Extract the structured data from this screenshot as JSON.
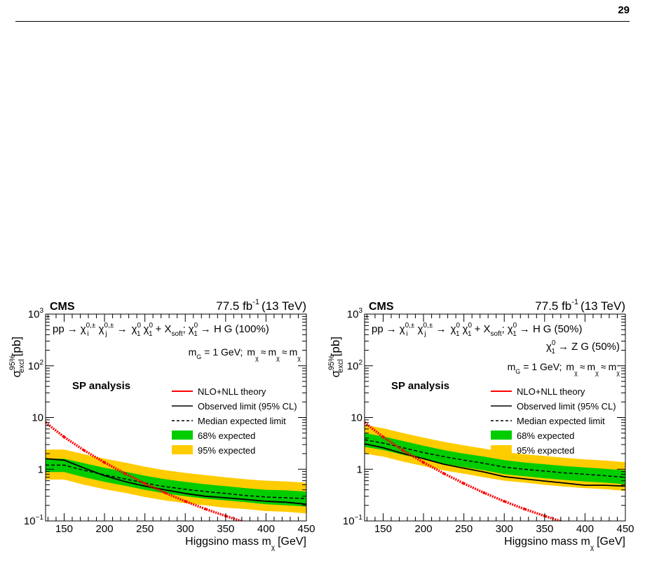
{
  "page": {
    "number": "29"
  },
  "chart_data": [
    {
      "type": "line",
      "experiment": "CMS",
      "luminosity": {
        "value": "77.5 fb",
        "exp": "-1",
        "energy": "(13 TeV)"
      },
      "process": {
        "pp": "pp",
        "arrow1": "→",
        "chi_pm_i": "χ",
        "sup_i": "0,±",
        "sub_i": "i",
        "chi_pm_j": "χ",
        "sup_j": "0,±",
        "sub_j": "j",
        "arrow2": "→",
        "chi1a": "χ",
        "chi1b": "χ",
        "plus_x": "+ X",
        "soft": "soft",
        "semicolon": ";",
        "chi1c": "χ",
        "decay": "→ H",
        "gravitino": "G",
        "br": "(100%)",
        "sup0": "0",
        "sub1": "1",
        "tilde": "~"
      },
      "second_decay": null,
      "mass_condition": {
        "mg": "m",
        "mg_sub": "G",
        "mg_val": "= 1 GeV;",
        "m": "m",
        "approx": "≈",
        "sub_chi20": "χ",
        "sub_chi1pm": "χ",
        "sub_chi10": "χ"
      },
      "analysis": "SP analysis",
      "xlabel": {
        "text": "Higgsino mass m",
        "sub": "χ",
        "unit": "[GeV]"
      },
      "ylabel": {
        "sigma": "σ",
        "sup": "95%",
        "sub": "excl",
        "unit": "[pb]"
      },
      "xlim": [
        127,
        450
      ],
      "ylim": [
        0.1,
        1000
      ],
      "yscale": "log",
      "x_ticks": [
        150,
        200,
        250,
        300,
        350,
        400,
        450
      ],
      "y_ticks": [
        {
          "v": 0.1,
          "b": "10",
          "e": "−1"
        },
        {
          "v": 1,
          "b": "1",
          "e": ""
        },
        {
          "v": 10,
          "b": "10",
          "e": ""
        },
        {
          "v": 100,
          "b": "10",
          "e": "2"
        },
        {
          "v": 1000,
          "b": "10",
          "e": "3"
        }
      ],
      "legend": {
        "placement": "middle-right",
        "theory": "NLO+NLL theory",
        "observed": "Observed limit (95% CL)",
        "expected": "Median expected limit",
        "band68": "68% expected",
        "band95": "95% expected"
      },
      "colors": {
        "theory": "#ff0000",
        "band68": "#00cc00",
        "band95": "#ffcc00",
        "line": "#000000"
      },
      "x": [
        127,
        150,
        175,
        200,
        225,
        250,
        275,
        300,
        325,
        350,
        375,
        400,
        425,
        450
      ],
      "theory": [
        8.0,
        4.2,
        2.3,
        1.35,
        0.83,
        0.53,
        0.35,
        0.24,
        0.17,
        0.125,
        0.093,
        0.07,
        0.054,
        0.042
      ],
      "observed": [
        1.6,
        1.5,
        1.05,
        0.75,
        0.58,
        0.47,
        0.4,
        0.34,
        0.3,
        0.28,
        0.26,
        0.24,
        0.23,
        0.21
      ],
      "expected": [
        1.2,
        1.2,
        0.95,
        0.78,
        0.65,
        0.54,
        0.46,
        0.41,
        0.37,
        0.34,
        0.31,
        0.29,
        0.28,
        0.27
      ],
      "band68_lo": [
        0.88,
        0.88,
        0.7,
        0.57,
        0.48,
        0.4,
        0.34,
        0.3,
        0.27,
        0.25,
        0.23,
        0.21,
        0.2,
        0.19
      ],
      "band68_hi": [
        1.6,
        1.6,
        1.3,
        1.07,
        0.9,
        0.75,
        0.64,
        0.57,
        0.51,
        0.47,
        0.43,
        0.4,
        0.39,
        0.37
      ],
      "band95_lo": [
        0.63,
        0.63,
        0.5,
        0.41,
        0.35,
        0.29,
        0.25,
        0.22,
        0.2,
        0.18,
        0.17,
        0.155,
        0.15,
        0.14
      ],
      "band95_hi": [
        2.4,
        2.4,
        1.95,
        1.6,
        1.35,
        1.12,
        0.96,
        0.85,
        0.77,
        0.7,
        0.64,
        0.6,
        0.58,
        0.55
      ]
    },
    {
      "type": "line",
      "experiment": "CMS",
      "luminosity": {
        "value": "77.5 fb",
        "exp": "-1",
        "energy": "(13 TeV)"
      },
      "process": {
        "pp": "pp",
        "arrow1": "→",
        "chi_pm_i": "χ",
        "sup_i": "0,±",
        "sub_i": "i",
        "chi_pm_j": "χ",
        "sup_j": "0,±",
        "sub_j": "j",
        "arrow2": "→",
        "chi1a": "χ",
        "chi1b": "χ",
        "plus_x": "+ X",
        "soft": "soft",
        "semicolon": ";",
        "chi1c": "χ",
        "decay": "→ H",
        "gravitino": "G",
        "br": "(50%)",
        "sup0": "0",
        "sub1": "1",
        "tilde": "~"
      },
      "second_decay": {
        "chi": "χ",
        "decay": "→ Z",
        "gravitino": "G",
        "br": "(50%)"
      },
      "mass_condition": {
        "mg": "m",
        "mg_sub": "G",
        "mg_val": "= 1 GeV;",
        "m": "m",
        "approx": "≈",
        "sub_chi20": "χ",
        "sub_chi1pm": "χ",
        "sub_chi10": "χ"
      },
      "analysis": "SP analysis",
      "xlabel": {
        "text": "Higgsino mass m",
        "sub": "χ",
        "unit": "[GeV]"
      },
      "ylabel": {
        "sigma": "σ",
        "sup": "95%",
        "sub": "excl",
        "unit": "[pb]"
      },
      "xlim": [
        127,
        450
      ],
      "ylim": [
        0.1,
        1000
      ],
      "yscale": "log",
      "x_ticks": [
        150,
        200,
        250,
        300,
        350,
        400,
        450
      ],
      "y_ticks": [
        {
          "v": 0.1,
          "b": "10",
          "e": "−1"
        },
        {
          "v": 1,
          "b": "1",
          "e": ""
        },
        {
          "v": 10,
          "b": "10",
          "e": ""
        },
        {
          "v": 100,
          "b": "10",
          "e": "2"
        },
        {
          "v": 1000,
          "b": "10",
          "e": "3"
        }
      ],
      "legend": {
        "placement": "middle-right",
        "theory": "NLO+NLL theory",
        "observed": "Observed limit (95% CL)",
        "expected": "Median expected limit",
        "band68": "68% expected",
        "band95": "95% expected"
      },
      "colors": {
        "theory": "#ff0000",
        "band68": "#00cc00",
        "band95": "#ffcc00",
        "line": "#000000"
      },
      "x": [
        127,
        150,
        175,
        200,
        225,
        250,
        275,
        300,
        325,
        350,
        375,
        400,
        425,
        450
      ],
      "theory": [
        8.0,
        4.2,
        2.3,
        1.35,
        0.83,
        0.53,
        0.35,
        0.24,
        0.17,
        0.125,
        0.093,
        0.07,
        0.054,
        0.042
      ],
      "observed": [
        3.1,
        2.6,
        2.0,
        1.6,
        1.25,
        1.05,
        0.88,
        0.72,
        0.65,
        0.59,
        0.54,
        0.49,
        0.49,
        0.47
      ],
      "expected": [
        3.7,
        3.2,
        2.6,
        2.1,
        1.75,
        1.5,
        1.3,
        1.1,
        1.0,
        0.92,
        0.85,
        0.8,
        0.75,
        0.7
      ],
      "band68_lo": [
        2.7,
        2.35,
        1.9,
        1.55,
        1.28,
        1.1,
        0.95,
        0.8,
        0.73,
        0.67,
        0.62,
        0.58,
        0.55,
        0.51
      ],
      "band68_hi": [
        5.0,
        4.3,
        3.5,
        2.85,
        2.35,
        2.0,
        1.75,
        1.5,
        1.35,
        1.25,
        1.15,
        1.08,
        1.02,
        0.95
      ],
      "band95_lo": [
        2.0,
        1.75,
        1.4,
        1.15,
        0.95,
        0.82,
        0.7,
        0.6,
        0.55,
        0.5,
        0.46,
        0.43,
        0.41,
        0.38
      ],
      "band95_hi": [
        7.2,
        6.2,
        5.0,
        4.1,
        3.4,
        2.9,
        2.5,
        2.15,
        1.95,
        1.8,
        1.66,
        1.55,
        1.47,
        1.37
      ]
    }
  ]
}
